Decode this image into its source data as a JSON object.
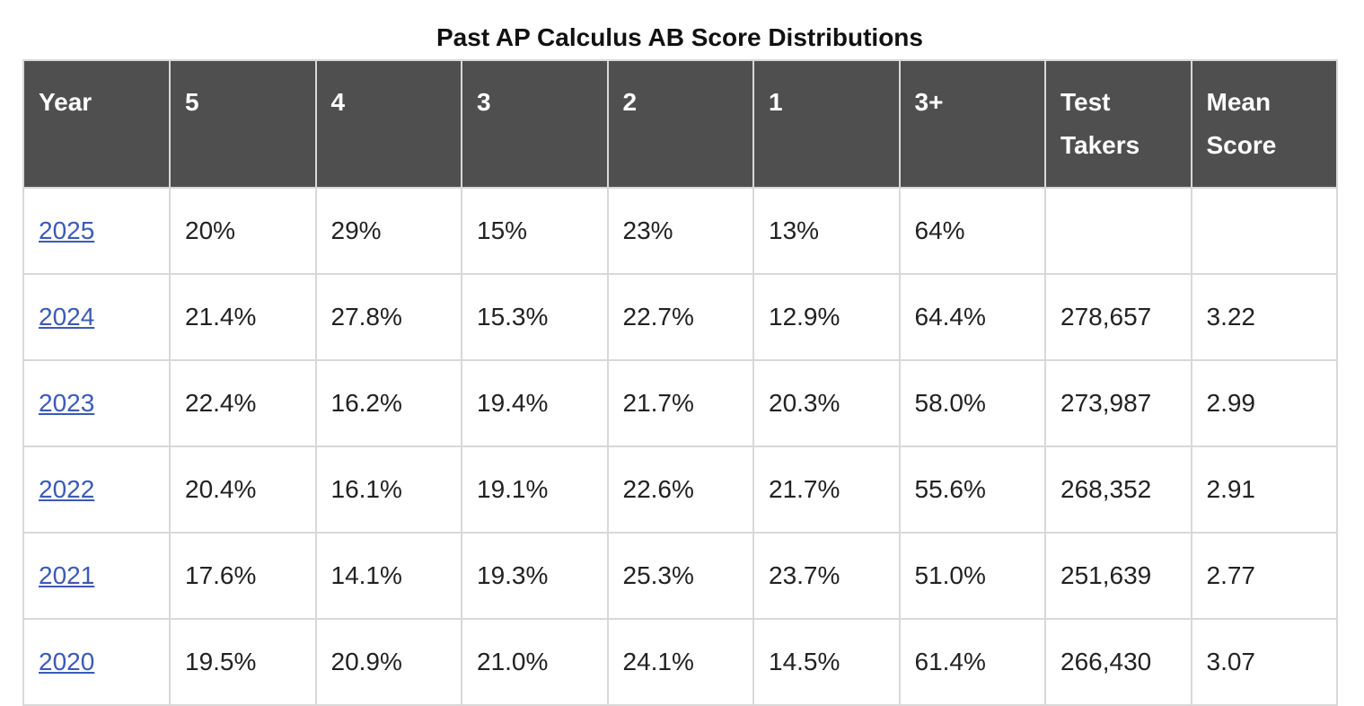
{
  "title": "Past AP Calculus AB Score Distributions",
  "columns": [
    "Year",
    "5",
    "4",
    "3",
    "2",
    "1",
    "3+",
    "Test Takers",
    "Mean Score"
  ],
  "rows": [
    {
      "year": "2025",
      "s5": "20%",
      "s4": "29%",
      "s3": "15%",
      "s2": "23%",
      "s1": "13%",
      "s3plus": "64%",
      "takers": "",
      "mean": ""
    },
    {
      "year": "2024",
      "s5": "21.4%",
      "s4": "27.8%",
      "s3": "15.3%",
      "s2": "22.7%",
      "s1": "12.9%",
      "s3plus": "64.4%",
      "takers": "278,657",
      "mean": "3.22"
    },
    {
      "year": "2023",
      "s5": "22.4%",
      "s4": "16.2%",
      "s3": "19.4%",
      "s2": "21.7%",
      "s1": "20.3%",
      "s3plus": "58.0%",
      "takers": "273,987",
      "mean": "2.99"
    },
    {
      "year": "2022",
      "s5": "20.4%",
      "s4": "16.1%",
      "s3": "19.1%",
      "s2": "22.6%",
      "s1": "21.7%",
      "s3plus": "55.6%",
      "takers": "268,352",
      "mean": "2.91"
    },
    {
      "year": "2021",
      "s5": "17.6%",
      "s4": "14.1%",
      "s3": "19.3%",
      "s2": "25.3%",
      "s1": "23.7%",
      "s3plus": "51.0%",
      "takers": "251,639",
      "mean": "2.77"
    },
    {
      "year": "2020",
      "s5": "19.5%",
      "s4": "20.9%",
      "s3": "21.0%",
      "s2": "24.1%",
      "s1": "14.5%",
      "s3plus": "61.4%",
      "takers": "266,430",
      "mean": "3.07"
    }
  ],
  "colors": {
    "header_bg": "#4f4f4f",
    "header_text": "#ffffff",
    "link": "#3b5ab8",
    "border": "#d8d8d8"
  }
}
